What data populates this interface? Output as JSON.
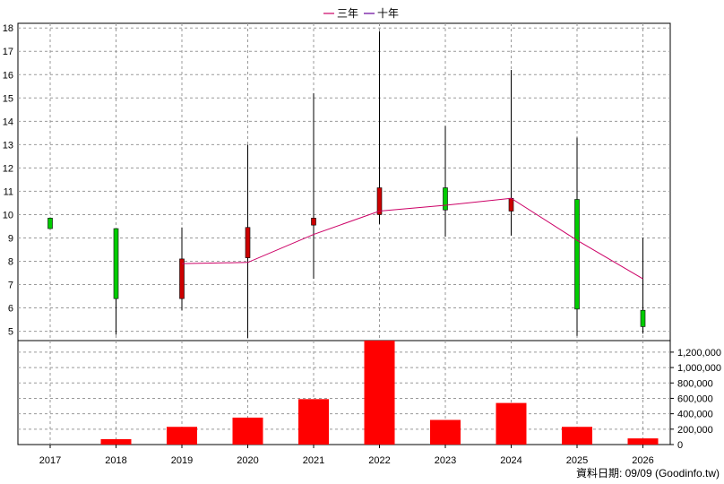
{
  "chart_data": {
    "type": "candlestick+line+bar",
    "categories": [
      "2017",
      "2018",
      "2019",
      "2020",
      "2021",
      "2022",
      "2023",
      "2024",
      "2025",
      "2026"
    ],
    "price_axis": {
      "ylim": [
        4.6,
        18.2
      ],
      "ticks": [
        "5",
        "6",
        "7",
        "8",
        "9",
        "10",
        "11",
        "12",
        "13",
        "14",
        "15",
        "16",
        "17",
        "18"
      ]
    },
    "volume_axis": {
      "ylim": [
        0,
        1350000
      ],
      "ticks": [
        "0",
        "200,000",
        "400,000",
        "600,000",
        "800,000",
        "1,000,000",
        "1,200,000"
      ]
    },
    "candles": [
      {
        "year": "2017",
        "open": 9.4,
        "close": 9.85,
        "high": 9.85,
        "low": 9.4,
        "color": "#00cc00"
      },
      {
        "year": "2018",
        "open": 6.4,
        "close": 9.4,
        "high": 9.4,
        "low": 4.85,
        "color": "#00cc00"
      },
      {
        "year": "2019",
        "open": 8.1,
        "close": 6.4,
        "high": 9.45,
        "low": 5.9,
        "color": "#cc0000"
      },
      {
        "year": "2020",
        "open": 9.45,
        "close": 8.15,
        "high": 13.0,
        "low": 4.7,
        "color": "#cc0000"
      },
      {
        "year": "2021",
        "open": 9.85,
        "close": 9.55,
        "high": 15.2,
        "low": 7.25,
        "color": "#cc0000"
      },
      {
        "year": "2022",
        "open": 11.15,
        "close": 10.0,
        "high": 17.85,
        "low": 9.6,
        "color": "#cc0000"
      },
      {
        "year": "2023",
        "open": 10.2,
        "close": 11.15,
        "high": 13.8,
        "low": 9.05,
        "color": "#00cc00"
      },
      {
        "year": "2024",
        "open": 10.7,
        "close": 10.15,
        "high": 16.2,
        "low": 9.1,
        "color": "#cc0000"
      },
      {
        "year": "2025",
        "open": 5.95,
        "close": 10.65,
        "high": 13.3,
        "low": 4.8,
        "color": "#00cc00"
      },
      {
        "year": "2026",
        "open": 5.2,
        "close": 5.9,
        "high": 9.0,
        "low": 4.9,
        "color": "#00cc00"
      }
    ],
    "series": [
      {
        "name": "三年",
        "color": "#cc0066",
        "x": [
          "2019",
          "2020",
          "2021",
          "2022",
          "2023",
          "2024",
          "2025",
          "2026"
        ],
        "values": [
          7.9,
          7.95,
          9.15,
          10.15,
          10.4,
          10.7,
          8.9,
          7.25
        ]
      },
      {
        "name": "十年",
        "color": "#660099",
        "x": [],
        "values": []
      }
    ],
    "volume": {
      "color": "#ff0000",
      "values": [
        0,
        70000,
        230000,
        350000,
        590000,
        1350000,
        320000,
        540000,
        230000,
        80000
      ]
    },
    "grid": true,
    "legend": "top-center",
    "legend_labels": [
      "三年",
      "十年"
    ],
    "source_note": "資料日期: 09/09  (Goodinfo.tw)"
  }
}
